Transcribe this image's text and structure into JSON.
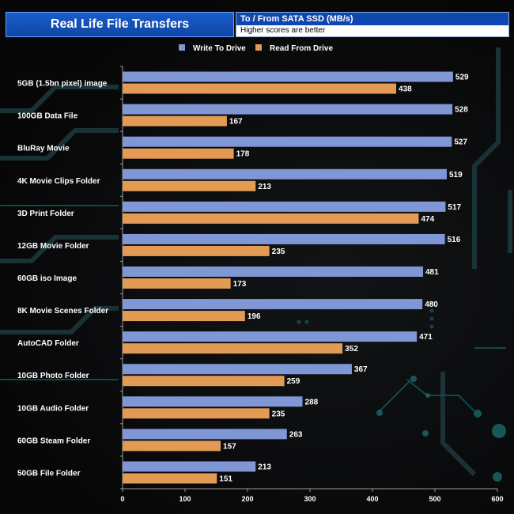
{
  "chart_data": {
    "type": "bar",
    "orientation": "horizontal",
    "title": "Real Life File Transfers",
    "subtitle": "To /  From SATA SSD (MB/s)",
    "note": "Higher scores are better",
    "categories": [
      "5GB (1.5bn pixel) image",
      "100GB Data File",
      "BluRay Movie",
      "4K Movie Clips Folder",
      "3D Print Folder",
      "12GB Movie Folder",
      "60GB iso Image",
      "8K Movie Scenes Folder",
      "AutoCAD Folder",
      "10GB Photo Folder",
      "10GB Audio Folder",
      "60GB Steam Folder",
      "50GB File Folder"
    ],
    "series": [
      {
        "name": "Write To  Drive",
        "color": "#7f97d4",
        "values": [
          529,
          528,
          527,
          519,
          517,
          516,
          481,
          480,
          471,
          367,
          288,
          263,
          213
        ]
      },
      {
        "name": "Read From  Drive",
        "color": "#e29a54",
        "values": [
          438,
          167,
          178,
          213,
          474,
          235,
          173,
          196,
          352,
          259,
          235,
          157,
          151
        ]
      }
    ],
    "xlim": [
      0,
      600
    ],
    "xticks": [
      "0",
      "100",
      "200",
      "300",
      "400",
      "500",
      "600"
    ],
    "legend_position": "top-center",
    "grid": false
  }
}
